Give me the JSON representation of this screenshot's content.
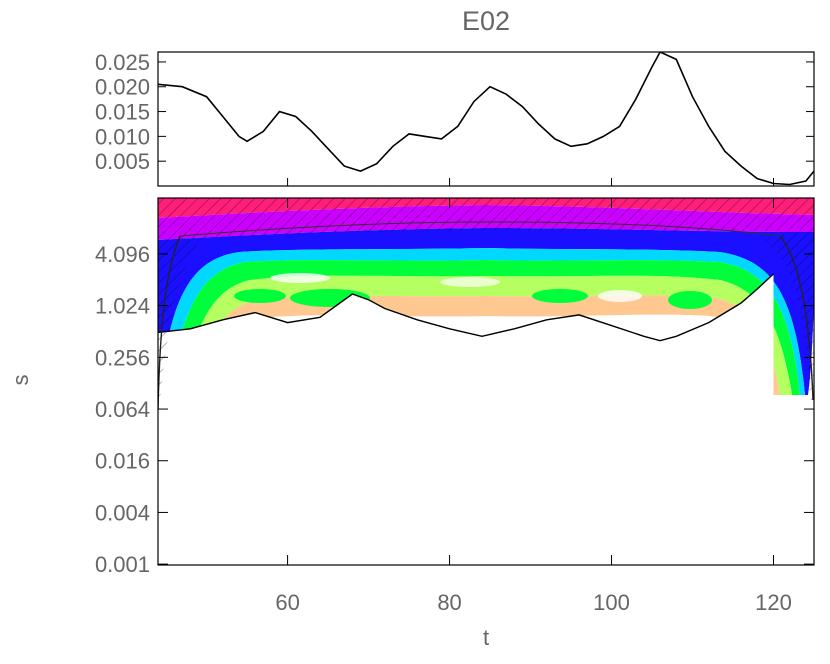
{
  "chart_data": [
    {
      "type": "line",
      "panel": "time-series",
      "title": "E02",
      "x": [
        44,
        47,
        50,
        52,
        54,
        55,
        57,
        59,
        61,
        63,
        65,
        67,
        69,
        71,
        73,
        75,
        77,
        79,
        81,
        83,
        85,
        87,
        89,
        91,
        93,
        95,
        97,
        99,
        101,
        103,
        105,
        106,
        108,
        110,
        112,
        114,
        116,
        118,
        120,
        122,
        124,
        125
      ],
      "values": [
        0.0205,
        0.02,
        0.018,
        0.014,
        0.01,
        0.009,
        0.011,
        0.015,
        0.014,
        0.011,
        0.0075,
        0.004,
        0.003,
        0.0045,
        0.008,
        0.0105,
        0.01,
        0.0095,
        0.012,
        0.017,
        0.02,
        0.0185,
        0.016,
        0.0125,
        0.0095,
        0.008,
        0.0085,
        0.01,
        0.012,
        0.0175,
        0.024,
        0.027,
        0.0255,
        0.018,
        0.012,
        0.007,
        0.004,
        0.0015,
        0.0005,
        0.0003,
        0.001,
        0.003
      ],
      "xlim": [
        44,
        125
      ],
      "ylim": [
        0,
        0.027
      ],
      "yticks": [
        "0.025",
        "0.020",
        "0.015",
        "0.010",
        "0.005"
      ],
      "ytick_values": [
        0.025,
        0.02,
        0.015,
        0.01,
        0.005
      ],
      "line_color": "#000000"
    },
    {
      "type": "heatmap",
      "panel": "wavelet-power",
      "xlabel": "t",
      "ylabel": "s",
      "xlim": [
        44,
        125
      ],
      "ylim_log2": [
        -10,
        4.2
      ],
      "xticks": [
        "60",
        "80",
        "100",
        "120"
      ],
      "xtick_values": [
        60,
        80,
        100,
        120
      ],
      "yticks": [
        "4.096",
        "1.024",
        "0.256",
        "0.064",
        "0.016",
        "0.004",
        "0.001"
      ],
      "ytick_values": [
        4.096,
        1.024,
        0.256,
        0.064,
        0.016,
        0.004,
        0.001
      ],
      "color_bands": [
        {
          "level": "top",
          "color": "#ff1f7a"
        },
        {
          "level": "upper",
          "color": "#cc00ff"
        },
        {
          "level": "middle",
          "color": "#1a10ff"
        },
        {
          "level": "lower-middle",
          "color": "#00d8ff"
        },
        {
          "level": "mid",
          "color": "#00ff3a"
        },
        {
          "level": "low",
          "color": "#b6ff60"
        },
        {
          "level": "lowest",
          "color": "#ffc890"
        }
      ],
      "significance_contour_x": [
        44,
        48,
        52,
        56,
        60,
        64,
        68,
        70,
        72,
        76,
        80,
        84,
        88,
        92,
        96,
        100,
        104,
        106,
        108,
        112,
        116,
        118,
        120
      ],
      "significance_contour_s": [
        0.5,
        0.55,
        0.7,
        0.85,
        0.65,
        0.75,
        1.4,
        1.2,
        0.95,
        0.7,
        0.55,
        0.45,
        0.55,
        0.7,
        0.8,
        0.6,
        0.45,
        0.4,
        0.45,
        0.65,
        1.1,
        1.6,
        2.4
      ],
      "contour_color": "#000000"
    }
  ]
}
